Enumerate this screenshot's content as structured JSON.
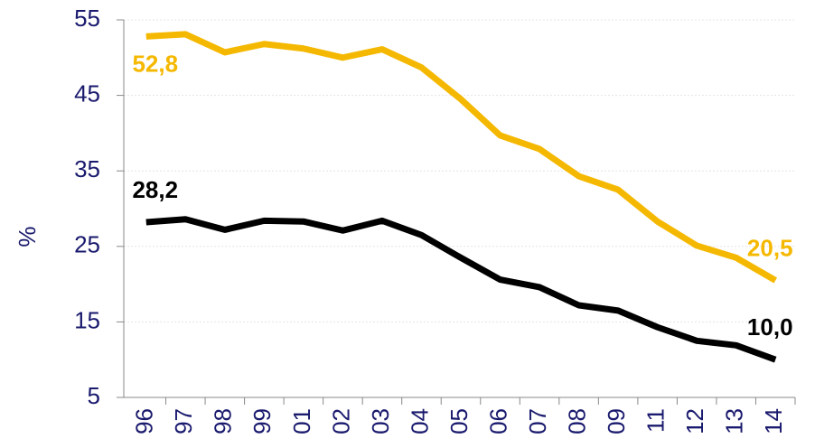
{
  "chart_data": {
    "type": "line",
    "y_label": "%",
    "categories": [
      "96",
      "97",
      "98",
      "99",
      "01",
      "02",
      "03",
      "04",
      "05",
      "06",
      "07",
      "08",
      "09",
      "11",
      "12",
      "13",
      "14"
    ],
    "series": [
      {
        "name": "yellow",
        "color": "#f5b800",
        "values": [
          52.8,
          53.1,
          50.7,
          51.8,
          51.2,
          50.0,
          51.1,
          48.7,
          44.5,
          39.7,
          37.9,
          34.3,
          32.5,
          28.3,
          25.1,
          23.5,
          20.5
        ],
        "value_labels": [
          "52,8",
          null,
          null,
          null,
          null,
          null,
          null,
          null,
          null,
          null,
          null,
          null,
          null,
          null,
          null,
          null,
          "20,5"
        ]
      },
      {
        "name": "black",
        "color": "#000000",
        "values": [
          28.2,
          28.6,
          27.2,
          28.4,
          28.3,
          27.1,
          28.4,
          26.5,
          23.5,
          20.6,
          19.6,
          17.2,
          16.5,
          14.3,
          12.5,
          11.9,
          10.0
        ],
        "value_labels": [
          "28,2",
          null,
          null,
          null,
          null,
          null,
          null,
          null,
          null,
          null,
          null,
          null,
          null,
          null,
          null,
          null,
          "10,0"
        ]
      }
    ],
    "ylim": [
      5,
      55
    ],
    "yticks": [
      5,
      15,
      25,
      35,
      45,
      55
    ],
    "grid": true
  }
}
